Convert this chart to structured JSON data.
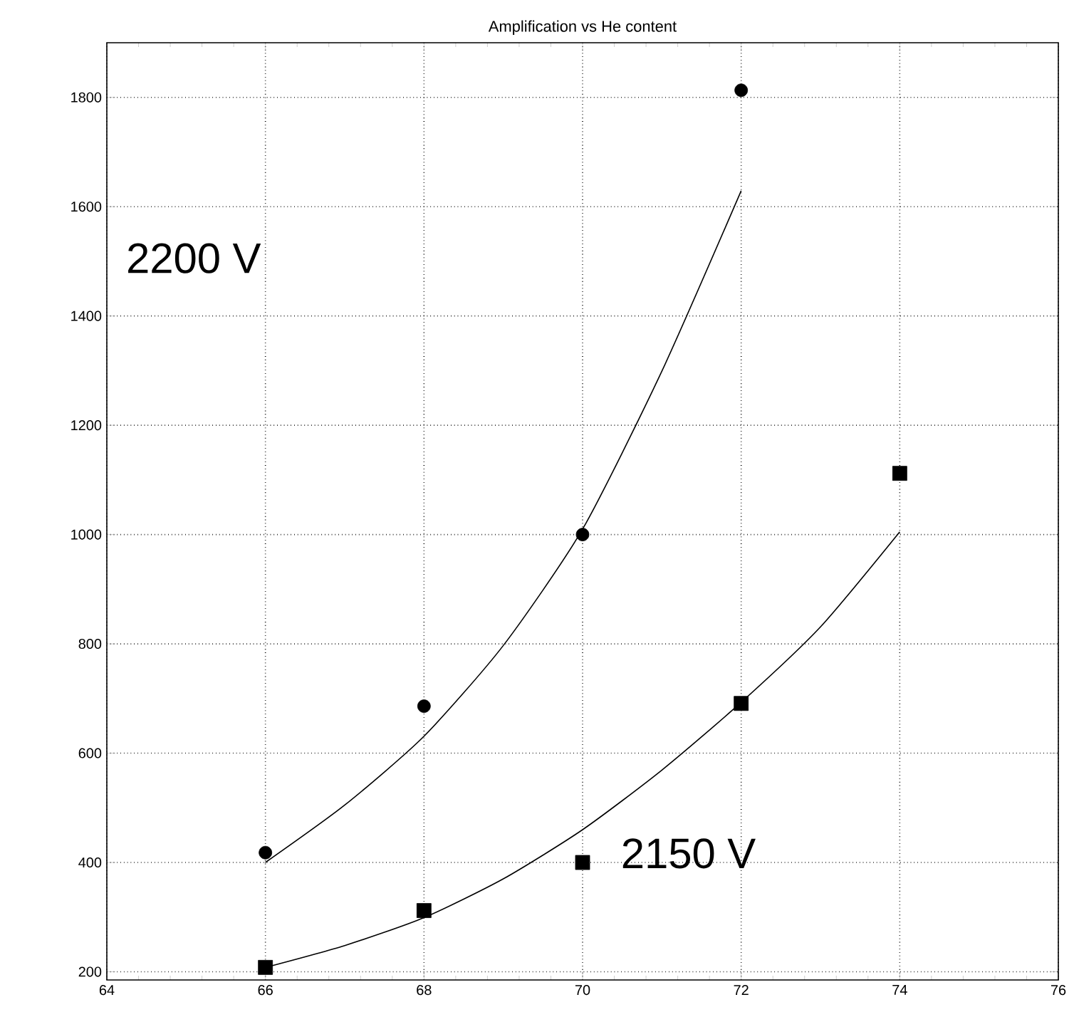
{
  "chart_data": {
    "type": "scatter",
    "title": "Amplification vs He content",
    "annotations": [
      "2200 V",
      "2150 V"
    ],
    "series": [
      {
        "marker": "circle",
        "color": "#000000",
        "x": [
          66,
          68,
          70,
          72
        ],
        "values": [
          418,
          686,
          1000,
          1813
        ]
      },
      {
        "marker": "square",
        "color": "#000000",
        "x": [
          66,
          68,
          70,
          72,
          74
        ],
        "values": [
          208,
          312,
          400,
          691,
          1112
        ]
      },
      {
        "type": "line",
        "color": "#000000",
        "x": [
          66,
          67,
          68,
          69,
          70,
          71,
          72
        ],
        "values": [
          400,
          505,
          631,
          797,
          1010,
          1299,
          1629
        ]
      },
      {
        "type": "line",
        "color": "#000000",
        "x": [
          66,
          67,
          68,
          69,
          70,
          71,
          72,
          73,
          74
        ],
        "values": [
          208,
          248,
          299,
          370,
          460,
          569,
          693,
          831,
          1005
        ]
      }
    ],
    "xlim": [
      64,
      76
    ],
    "xticks": [
      64,
      66,
      68,
      70,
      72,
      74,
      76
    ],
    "ylim": [
      185,
      1900
    ],
    "yticks": [
      200,
      400,
      600,
      800,
      1000,
      1200,
      1400,
      1600,
      1800
    ],
    "grid": true
  }
}
